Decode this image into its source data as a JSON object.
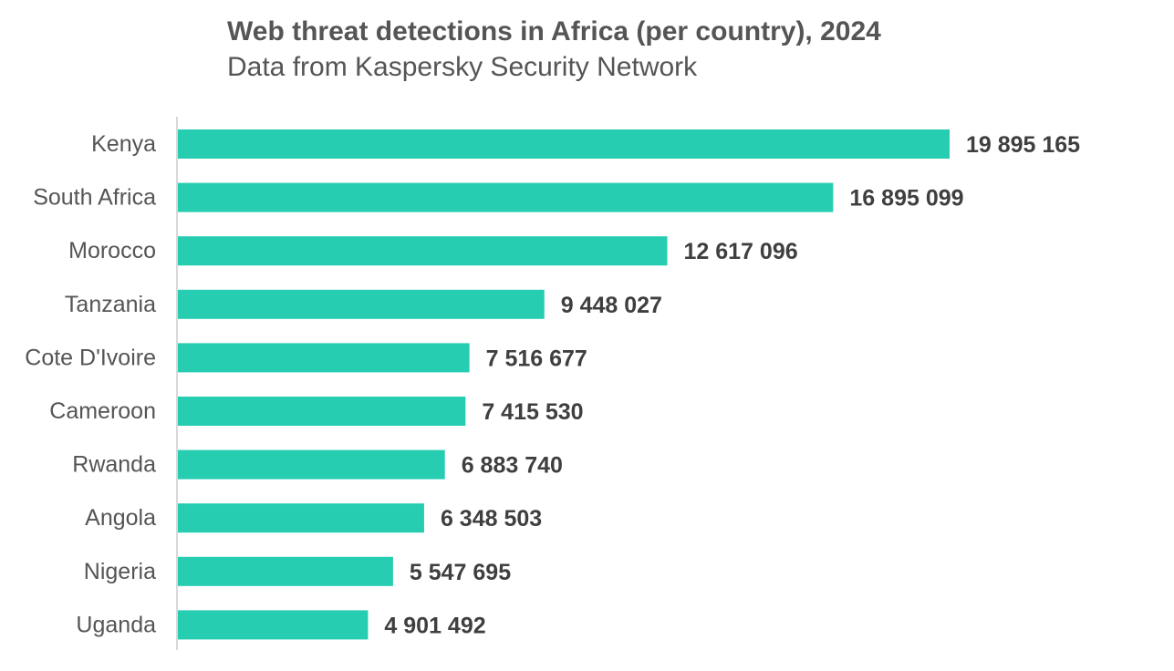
{
  "chart_data": {
    "type": "bar",
    "orientation": "horizontal",
    "title": "Web threat detections in Africa (per country), 2024",
    "subtitle": "Data from Kaspersky Security Network",
    "categories": [
      "Kenya",
      "South Africa",
      "Morocco",
      "Tanzania",
      "Cote D'Ivoire",
      "Cameroon",
      "Rwanda",
      "Angola",
      "Nigeria",
      "Uganda"
    ],
    "values": [
      19895165,
      16895099,
      12617096,
      9448027,
      7516677,
      7415530,
      6883740,
      6348503,
      5547695,
      4901492
    ],
    "value_labels": [
      "19 895 165",
      "16 895 099",
      "12 617 096",
      "9 448 027",
      "7 516 677",
      "7 415 530",
      "6 883 740",
      "6 348 503",
      "5 547 695",
      "4 901 492"
    ],
    "xlabel": "",
    "ylabel": "",
    "xlim": [
      0,
      23000000
    ],
    "grid": false,
    "legend": "none",
    "bar_color": "#26cdb1",
    "axis_color": "#d9d9d9"
  }
}
